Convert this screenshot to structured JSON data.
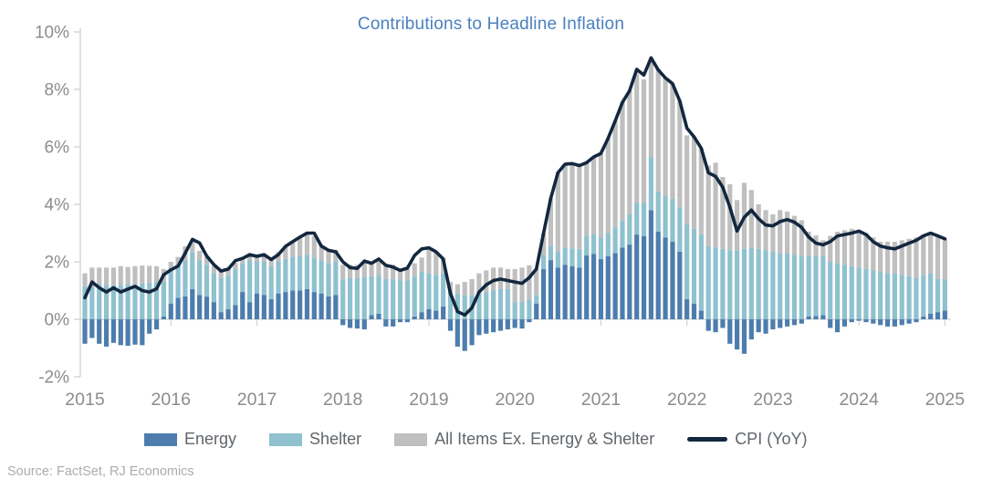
{
  "title": "Contributions to Headline Inflation",
  "source_note": "Source: FactSet, RJ Economics",
  "legend": {
    "items": [
      {
        "label": "Energy"
      },
      {
        "label": "Shelter"
      },
      {
        "label": "All Items Ex. Energy & Shelter"
      },
      {
        "label": "CPI (YoY)"
      }
    ]
  },
  "colors": {
    "energy": "#4d7dad",
    "shelter": "#8fc1cf",
    "ex_energy_shelter": "#bfbfbf",
    "cpi_line": "#13273f",
    "title_text": "#4a80bf",
    "axis_text": "#8c8c8c",
    "legend_text": "#60666b",
    "source_text": "#acacac",
    "axis_line": "#d2d2d2"
  },
  "chart_data": {
    "type": "bar",
    "stacked": true,
    "title": "Contributions to Headline Inflation",
    "xlabel": "",
    "ylabel": "",
    "y_unit": "%",
    "ylim": [
      -2,
      10
    ],
    "grid": false,
    "legend_position": "bottom",
    "x_ticks": [
      "2015",
      "2016",
      "2017",
      "2018",
      "2019",
      "2020",
      "2021",
      "2022",
      "2023",
      "2024",
      "2025"
    ],
    "y_ticks": [
      "10%",
      "8%",
      "6%",
      "4%",
      "2%",
      "0%",
      "-2%"
    ],
    "series": [
      {
        "name": "Energy",
        "color": "#4d7dad",
        "values": [
          -0.85,
          -0.65,
          -0.85,
          -0.95,
          -0.82,
          -0.9,
          -0.92,
          -0.88,
          -0.9,
          -0.5,
          -0.35,
          0.1,
          0.55,
          0.75,
          0.8,
          1.05,
          0.85,
          0.79,
          0.6,
          0.25,
          0.35,
          0.5,
          0.95,
          0.6,
          0.9,
          0.85,
          0.7,
          0.9,
          0.95,
          1.0,
          1.0,
          1.05,
          0.95,
          0.9,
          0.8,
          0.85,
          -0.2,
          -0.3,
          -0.32,
          -0.35,
          0.15,
          0.2,
          -0.25,
          -0.25,
          -0.1,
          -0.1,
          0.1,
          0.25,
          0.35,
          0.3,
          0.45,
          -0.4,
          -0.95,
          -1.1,
          -0.9,
          -0.55,
          -0.5,
          -0.45,
          -0.4,
          -0.35,
          -0.3,
          -0.32,
          -0.1,
          0.55,
          1.75,
          2.06,
          1.8,
          1.9,
          1.85,
          1.8,
          2.22,
          2.27,
          2.1,
          2.2,
          2.3,
          2.5,
          2.6,
          2.95,
          2.9,
          3.8,
          3.05,
          2.85,
          2.7,
          2.35,
          0.7,
          0.55,
          0.3,
          -0.4,
          -0.45,
          -0.3,
          -0.85,
          -1.05,
          -1.2,
          -0.7,
          -0.45,
          -0.5,
          -0.35,
          -0.3,
          -0.25,
          -0.2,
          -0.15,
          0.1,
          0.12,
          0.15,
          -0.3,
          -0.45,
          -0.25,
          -0.1,
          -0.05,
          -0.1,
          -0.15,
          -0.2,
          -0.25,
          -0.25,
          -0.2,
          -0.15,
          -0.1,
          0.1,
          0.2,
          0.25,
          0.3
        ]
      },
      {
        "name": "Shelter",
        "color": "#8fc1cf",
        "values": [
          1.15,
          1.12,
          1.22,
          1.2,
          1.18,
          1.2,
          1.22,
          1.22,
          1.25,
          1.28,
          1.3,
          1.2,
          1.25,
          1.21,
          1.25,
          1.28,
          1.21,
          1.11,
          0.99,
          1.18,
          1.18,
          1.25,
          1.01,
          1.46,
          1.12,
          1.15,
          1.15,
          1.12,
          1.15,
          1.18,
          1.2,
          1.2,
          1.2,
          1.15,
          1.15,
          1.15,
          1.4,
          1.43,
          1.43,
          1.48,
          1.35,
          1.35,
          1.4,
          1.4,
          1.35,
          1.35,
          1.38,
          1.4,
          1.25,
          1.25,
          1.15,
          1.0,
          0.9,
          0.85,
          0.85,
          0.9,
          0.95,
          1.0,
          1.05,
          1.05,
          0.6,
          0.6,
          0.68,
          0.3,
          0.5,
          0.5,
          0.55,
          0.6,
          0.62,
          0.65,
          0.68,
          0.7,
          0.75,
          0.8,
          0.9,
          0.95,
          1.05,
          1.1,
          1.15,
          1.85,
          1.4,
          1.45,
          1.5,
          1.55,
          2.6,
          2.6,
          2.65,
          2.55,
          2.5,
          2.45,
          2.4,
          2.4,
          2.45,
          2.5,
          2.45,
          2.4,
          2.35,
          2.3,
          2.3,
          2.25,
          2.2,
          2.1,
          2.1,
          2.05,
          2.0,
          1.95,
          1.9,
          1.85,
          1.8,
          1.75,
          1.7,
          1.65,
          1.6,
          1.6,
          1.55,
          1.5,
          1.45,
          1.45,
          1.4,
          1.15,
          1.1
        ]
      },
      {
        "name": "All Items Ex. Energy & Shelter",
        "color": "#bfbfbf",
        "values": [
          0.45,
          0.68,
          0.58,
          0.6,
          0.62,
          0.65,
          0.6,
          0.63,
          0.62,
          0.58,
          0.55,
          0.45,
          0.2,
          0.21,
          0.49,
          0.37,
          0.32,
          0.27,
          0.26,
          0.26,
          0.24,
          0.21,
          0.16,
          0.21,
          0.25,
          0.28,
          0.3,
          0.32,
          0.45,
          0.52,
          0.62,
          0.7,
          0.75,
          0.5,
          0.45,
          0.42,
          0.5,
          0.47,
          0.47,
          0.48,
          0.5,
          0.45,
          0.5,
          0.5,
          0.4,
          0.4,
          0.47,
          0.5,
          0.85,
          0.8,
          0.55,
          0.3,
          0.32,
          0.45,
          0.55,
          0.7,
          0.75,
          0.8,
          0.75,
          0.7,
          1.15,
          1.2,
          1.2,
          0.9,
          0.75,
          1.65,
          2.75,
          2.9,
          2.95,
          2.9,
          2.55,
          2.7,
          2.9,
          3.3,
          3.7,
          4.1,
          4.3,
          4.5,
          4.3,
          3.45,
          4.25,
          4.1,
          4.0,
          3.7,
          3.1,
          3.2,
          3.0,
          2.8,
          2.95,
          2.5,
          2.3,
          1.75,
          2.3,
          2.0,
          1.55,
          1.4,
          1.3,
          1.5,
          1.45,
          1.35,
          1.25,
          0.85,
          0.7,
          0.55,
          0.9,
          1.1,
          1.2,
          1.3,
          1.3,
          1.25,
          1.15,
          1.05,
          1.1,
          1.1,
          1.2,
          1.3,
          1.4,
          1.4,
          1.35,
          1.45,
          1.4
        ]
      }
    ],
    "line_series": {
      "name": "CPI (YoY)",
      "color": "#13273f",
      "values": [
        0.75,
        1.3,
        1.1,
        0.95,
        1.1,
        0.95,
        1.05,
        1.15,
        1.0,
        0.95,
        1.06,
        1.55,
        1.72,
        1.85,
        2.3,
        2.78,
        2.66,
        2.2,
        1.9,
        1.68,
        1.75,
        2.04,
        2.12,
        2.25,
        2.19,
        2.25,
        2.08,
        2.25,
        2.54,
        2.7,
        2.86,
        3.0,
        3.0,
        2.55,
        2.4,
        2.35,
        2.0,
        1.8,
        1.77,
        2.03,
        1.95,
        2.1,
        1.88,
        1.82,
        1.7,
        1.78,
        2.22,
        2.45,
        2.49,
        2.35,
        2.1,
        0.9,
        0.27,
        0.15,
        0.4,
        0.95,
        1.2,
        1.35,
        1.4,
        1.35,
        1.3,
        1.25,
        1.45,
        1.75,
        3.0,
        4.2,
        5.1,
        5.4,
        5.42,
        5.35,
        5.45,
        5.65,
        5.77,
        6.3,
        6.9,
        7.55,
        7.95,
        8.7,
        8.5,
        9.1,
        8.68,
        8.4,
        8.2,
        7.6,
        6.65,
        6.35,
        5.95,
        5.1,
        4.97,
        4.6,
        3.9,
        3.07,
        3.55,
        3.8,
        3.5,
        3.28,
        3.25,
        3.4,
        3.47,
        3.38,
        3.2,
        2.86,
        2.65,
        2.59,
        2.7,
        2.9,
        2.95,
        3.0,
        3.07,
        2.95,
        2.7,
        2.55,
        2.49,
        2.45,
        2.55,
        2.65,
        2.75,
        2.9,
        3.0,
        2.9,
        2.8
      ]
    }
  }
}
